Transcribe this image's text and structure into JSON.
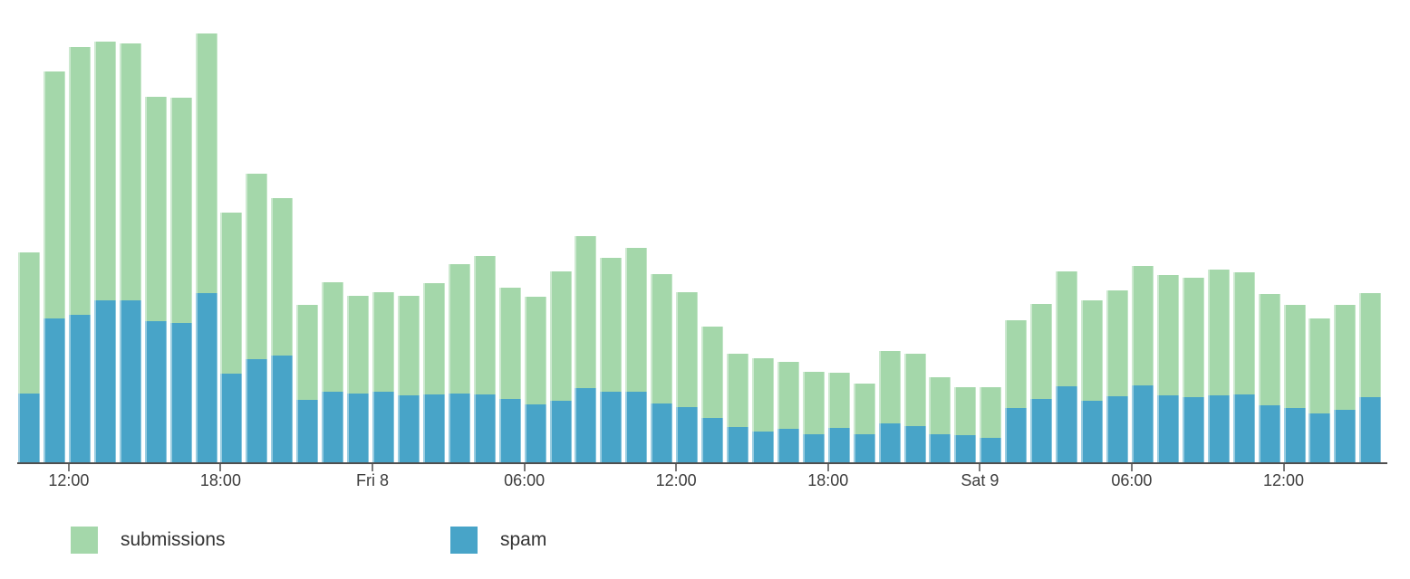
{
  "chart_data": {
    "type": "bar",
    "stacked": true,
    "title": "",
    "xlabel": "",
    "ylabel": "",
    "x_axis": {
      "interval_per_bar": "1 hour",
      "tick_labels": [
        "12:00",
        "18:00",
        "Fri 8",
        "06:00",
        "12:00",
        "18:00",
        "Sat 9",
        "06:00",
        "12:00"
      ],
      "tick_bar_indices": [
        2,
        8,
        14,
        20,
        26,
        32,
        38,
        44,
        50
      ]
    },
    "y_axis": {
      "visible": false,
      "note": "no y-axis scale shown; values are rendered segment heights in px"
    },
    "grid": false,
    "legend_position": "bottom",
    "series": [
      {
        "name": "submissions",
        "color": "#a4d7aa",
        "values": [
          156,
          273,
          296,
          286,
          284,
          248,
          249,
          287,
          178,
          205,
          174,
          105,
          121,
          108,
          110,
          110,
          123,
          143,
          153,
          123,
          119,
          143,
          168,
          148,
          159,
          143,
          127,
          101,
          81,
          81,
          74,
          69,
          61,
          56,
          80,
          80,
          63,
          53,
          56,
          97,
          105,
          127,
          111,
          117,
          132,
          133,
          132,
          139,
          135,
          123,
          114,
          105,
          116,
          115
        ]
      },
      {
        "name": "spam",
        "color": "#48a4c8",
        "values": [
          76,
          159,
          163,
          179,
          179,
          156,
          154,
          187,
          98,
          114,
          118,
          69,
          78,
          76,
          78,
          74,
          75,
          76,
          75,
          70,
          64,
          68,
          82,
          78,
          78,
          65,
          61,
          49,
          39,
          34,
          37,
          31,
          38,
          31,
          43,
          40,
          31,
          30,
          27,
          60,
          70,
          84,
          68,
          73,
          85,
          74,
          72,
          74,
          75,
          63,
          60,
          54,
          58,
          72
        ]
      }
    ],
    "legend": {
      "items": [
        {
          "label": "submissions",
          "color": "#a4d7aa"
        },
        {
          "label": "spam",
          "color": "#48a4c8"
        }
      ]
    }
  },
  "colors": {
    "axis_line": "#4f4f4f",
    "tick_mark": "#7a7a7a",
    "tick_text": "#3d3d3d",
    "legend_text": "#333333"
  }
}
